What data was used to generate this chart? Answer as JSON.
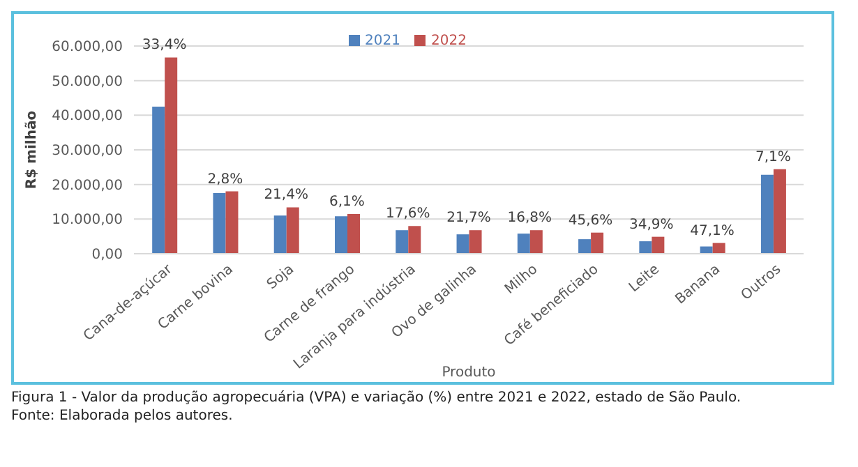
{
  "chart_data": {
    "type": "bar",
    "categories": [
      "Cana-de-açúcar",
      "Carne bovina",
      "Soja",
      "Carne de frango",
      "Laranja para indústria",
      "Ovo de galinha",
      "Milho",
      "Café beneficiado",
      "Leite",
      "Banana",
      "Outros"
    ],
    "series": [
      {
        "name": "2021",
        "color": "#4f81bd",
        "values": [
          42500,
          17500,
          11000,
          10800,
          6800,
          5600,
          5800,
          4200,
          3600,
          2100,
          22800
        ]
      },
      {
        "name": "2022",
        "color": "#c0504d",
        "values": [
          56700,
          18000,
          13400,
          11500,
          8000,
          6800,
          6800,
          6100,
          4900,
          3100,
          24400
        ]
      }
    ],
    "xlabel": "Produto",
    "ylabel": "R$ milhão",
    "ylim": [
      0,
      60000
    ],
    "yticks": [
      {
        "value": 0,
        "label": "0,00"
      },
      {
        "value": 10000,
        "label": "10.000,00"
      },
      {
        "value": 20000,
        "label": "20.000,00"
      },
      {
        "value": 30000,
        "label": "30.000,00"
      },
      {
        "value": 40000,
        "label": "40.000,00"
      },
      {
        "value": 50000,
        "label": "50.000,00"
      },
      {
        "value": 60000,
        "label": "60.000,00"
      }
    ],
    "grid": "y",
    "legend": "top",
    "annotations": [
      {
        "text": "33,4%",
        "x": "Cana-de-açúcar",
        "y": 56700
      },
      {
        "text": "2,8%",
        "x": "Carne bovina",
        "y": 18000
      },
      {
        "text": "21,4%",
        "x": "Soja",
        "y": 13400
      },
      {
        "text": "6,1%",
        "x": "Carne de frango",
        "y": 11500
      },
      {
        "text": "17,6%",
        "x": "Laranja para indústria",
        "y": 8000
      },
      {
        "text": "21,7%",
        "x": "Ovo de galinha",
        "y": 6800
      },
      {
        "text": "16,8%",
        "x": "Milho",
        "y": 6800
      },
      {
        "text": "45,6%",
        "x": "Café beneficiado",
        "y": 6100
      },
      {
        "text": "34,9%",
        "x": "Leite",
        "y": 4900
      },
      {
        "text": "47,1%",
        "x": "Banana",
        "y": 3100
      },
      {
        "text": "7,1%",
        "x": "Outros",
        "y": 24400
      },
      "Figura 1 - Valor da produção agropecuária (VPA) e variação (%) entre 2021 e 2022, estado de São Paulo.",
      "Fonte: Elaborada pelos autores."
    ]
  }
}
